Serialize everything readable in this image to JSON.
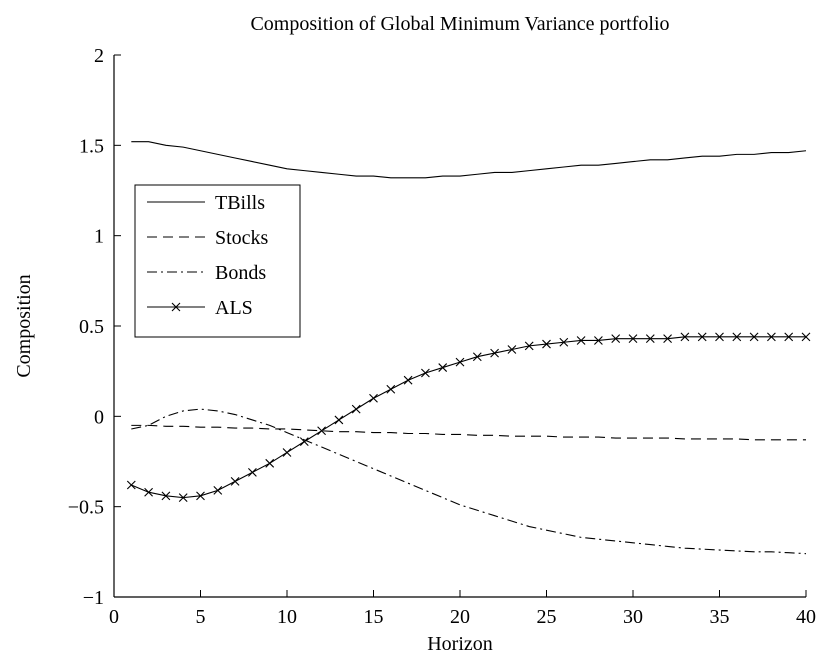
{
  "chart_data": {
    "type": "line",
    "title": "Composition of Global Minimum Variance portfolio",
    "xlabel": "Horizon",
    "ylabel": "Composition",
    "x": [
      1,
      2,
      3,
      4,
      5,
      6,
      7,
      8,
      9,
      10,
      11,
      12,
      13,
      14,
      15,
      16,
      17,
      18,
      19,
      20,
      21,
      22,
      23,
      24,
      25,
      26,
      27,
      28,
      29,
      30,
      31,
      32,
      33,
      34,
      35,
      36,
      37,
      38,
      39,
      40
    ],
    "xlim": [
      0,
      40
    ],
    "xticks": [
      0,
      5,
      10,
      15,
      20,
      25,
      30,
      35,
      40
    ],
    "ylim": [
      -1,
      2
    ],
    "yticks": [
      {
        "value": -1,
        "label": "−1"
      },
      {
        "value": -0.5,
        "label": "−0.5"
      },
      0,
      0.5,
      1,
      1.5,
      2
    ],
    "legend": "center left",
    "series": [
      {
        "name": "TBills",
        "color": "#000000",
        "line_style": "solid",
        "values": [
          1.52,
          1.52,
          1.5,
          1.49,
          1.47,
          1.45,
          1.43,
          1.41,
          1.39,
          1.37,
          1.36,
          1.35,
          1.34,
          1.33,
          1.33,
          1.32,
          1.32,
          1.32,
          1.33,
          1.33,
          1.34,
          1.35,
          1.35,
          1.36,
          1.37,
          1.38,
          1.39,
          1.39,
          1.4,
          1.41,
          1.42,
          1.42,
          1.43,
          1.44,
          1.44,
          1.45,
          1.45,
          1.46,
          1.46,
          1.47
        ]
      },
      {
        "name": "Stocks",
        "color": "#000000",
        "line_style": "dashed",
        "values": [
          -0.05,
          -0.05,
          -0.055,
          -0.055,
          -0.06,
          -0.06,
          -0.065,
          -0.065,
          -0.07,
          -0.07,
          -0.075,
          -0.08,
          -0.085,
          -0.085,
          -0.09,
          -0.09,
          -0.095,
          -0.095,
          -0.1,
          -0.1,
          -0.105,
          -0.105,
          -0.11,
          -0.11,
          -0.11,
          -0.115,
          -0.115,
          -0.115,
          -0.12,
          -0.12,
          -0.12,
          -0.12,
          -0.125,
          -0.125,
          -0.125,
          -0.125,
          -0.13,
          -0.13,
          -0.13,
          -0.13
        ]
      },
      {
        "name": "Bonds",
        "color": "#000000",
        "line_style": "dashdot",
        "values": [
          -0.07,
          -0.05,
          0.0,
          0.03,
          0.04,
          0.03,
          0.01,
          -0.02,
          -0.05,
          -0.09,
          -0.13,
          -0.17,
          -0.21,
          -0.25,
          -0.29,
          -0.33,
          -0.37,
          -0.41,
          -0.45,
          -0.49,
          -0.52,
          -0.55,
          -0.58,
          -0.61,
          -0.63,
          -0.65,
          -0.67,
          -0.68,
          -0.69,
          -0.7,
          -0.71,
          -0.72,
          -0.73,
          -0.735,
          -0.74,
          -0.745,
          -0.75,
          -0.75,
          -0.755,
          -0.76
        ]
      },
      {
        "name": "ALS",
        "color": "#000000",
        "line_style": "solid",
        "marker": "x",
        "values": [
          -0.38,
          -0.42,
          -0.44,
          -0.45,
          -0.44,
          -0.41,
          -0.36,
          -0.31,
          -0.26,
          -0.2,
          -0.14,
          -0.08,
          -0.02,
          0.04,
          0.1,
          0.15,
          0.2,
          0.24,
          0.27,
          0.3,
          0.33,
          0.35,
          0.37,
          0.39,
          0.4,
          0.41,
          0.42,
          0.42,
          0.43,
          0.43,
          0.43,
          0.43,
          0.44,
          0.44,
          0.44,
          0.44,
          0.44,
          0.44,
          0.44,
          0.44
        ]
      }
    ]
  }
}
